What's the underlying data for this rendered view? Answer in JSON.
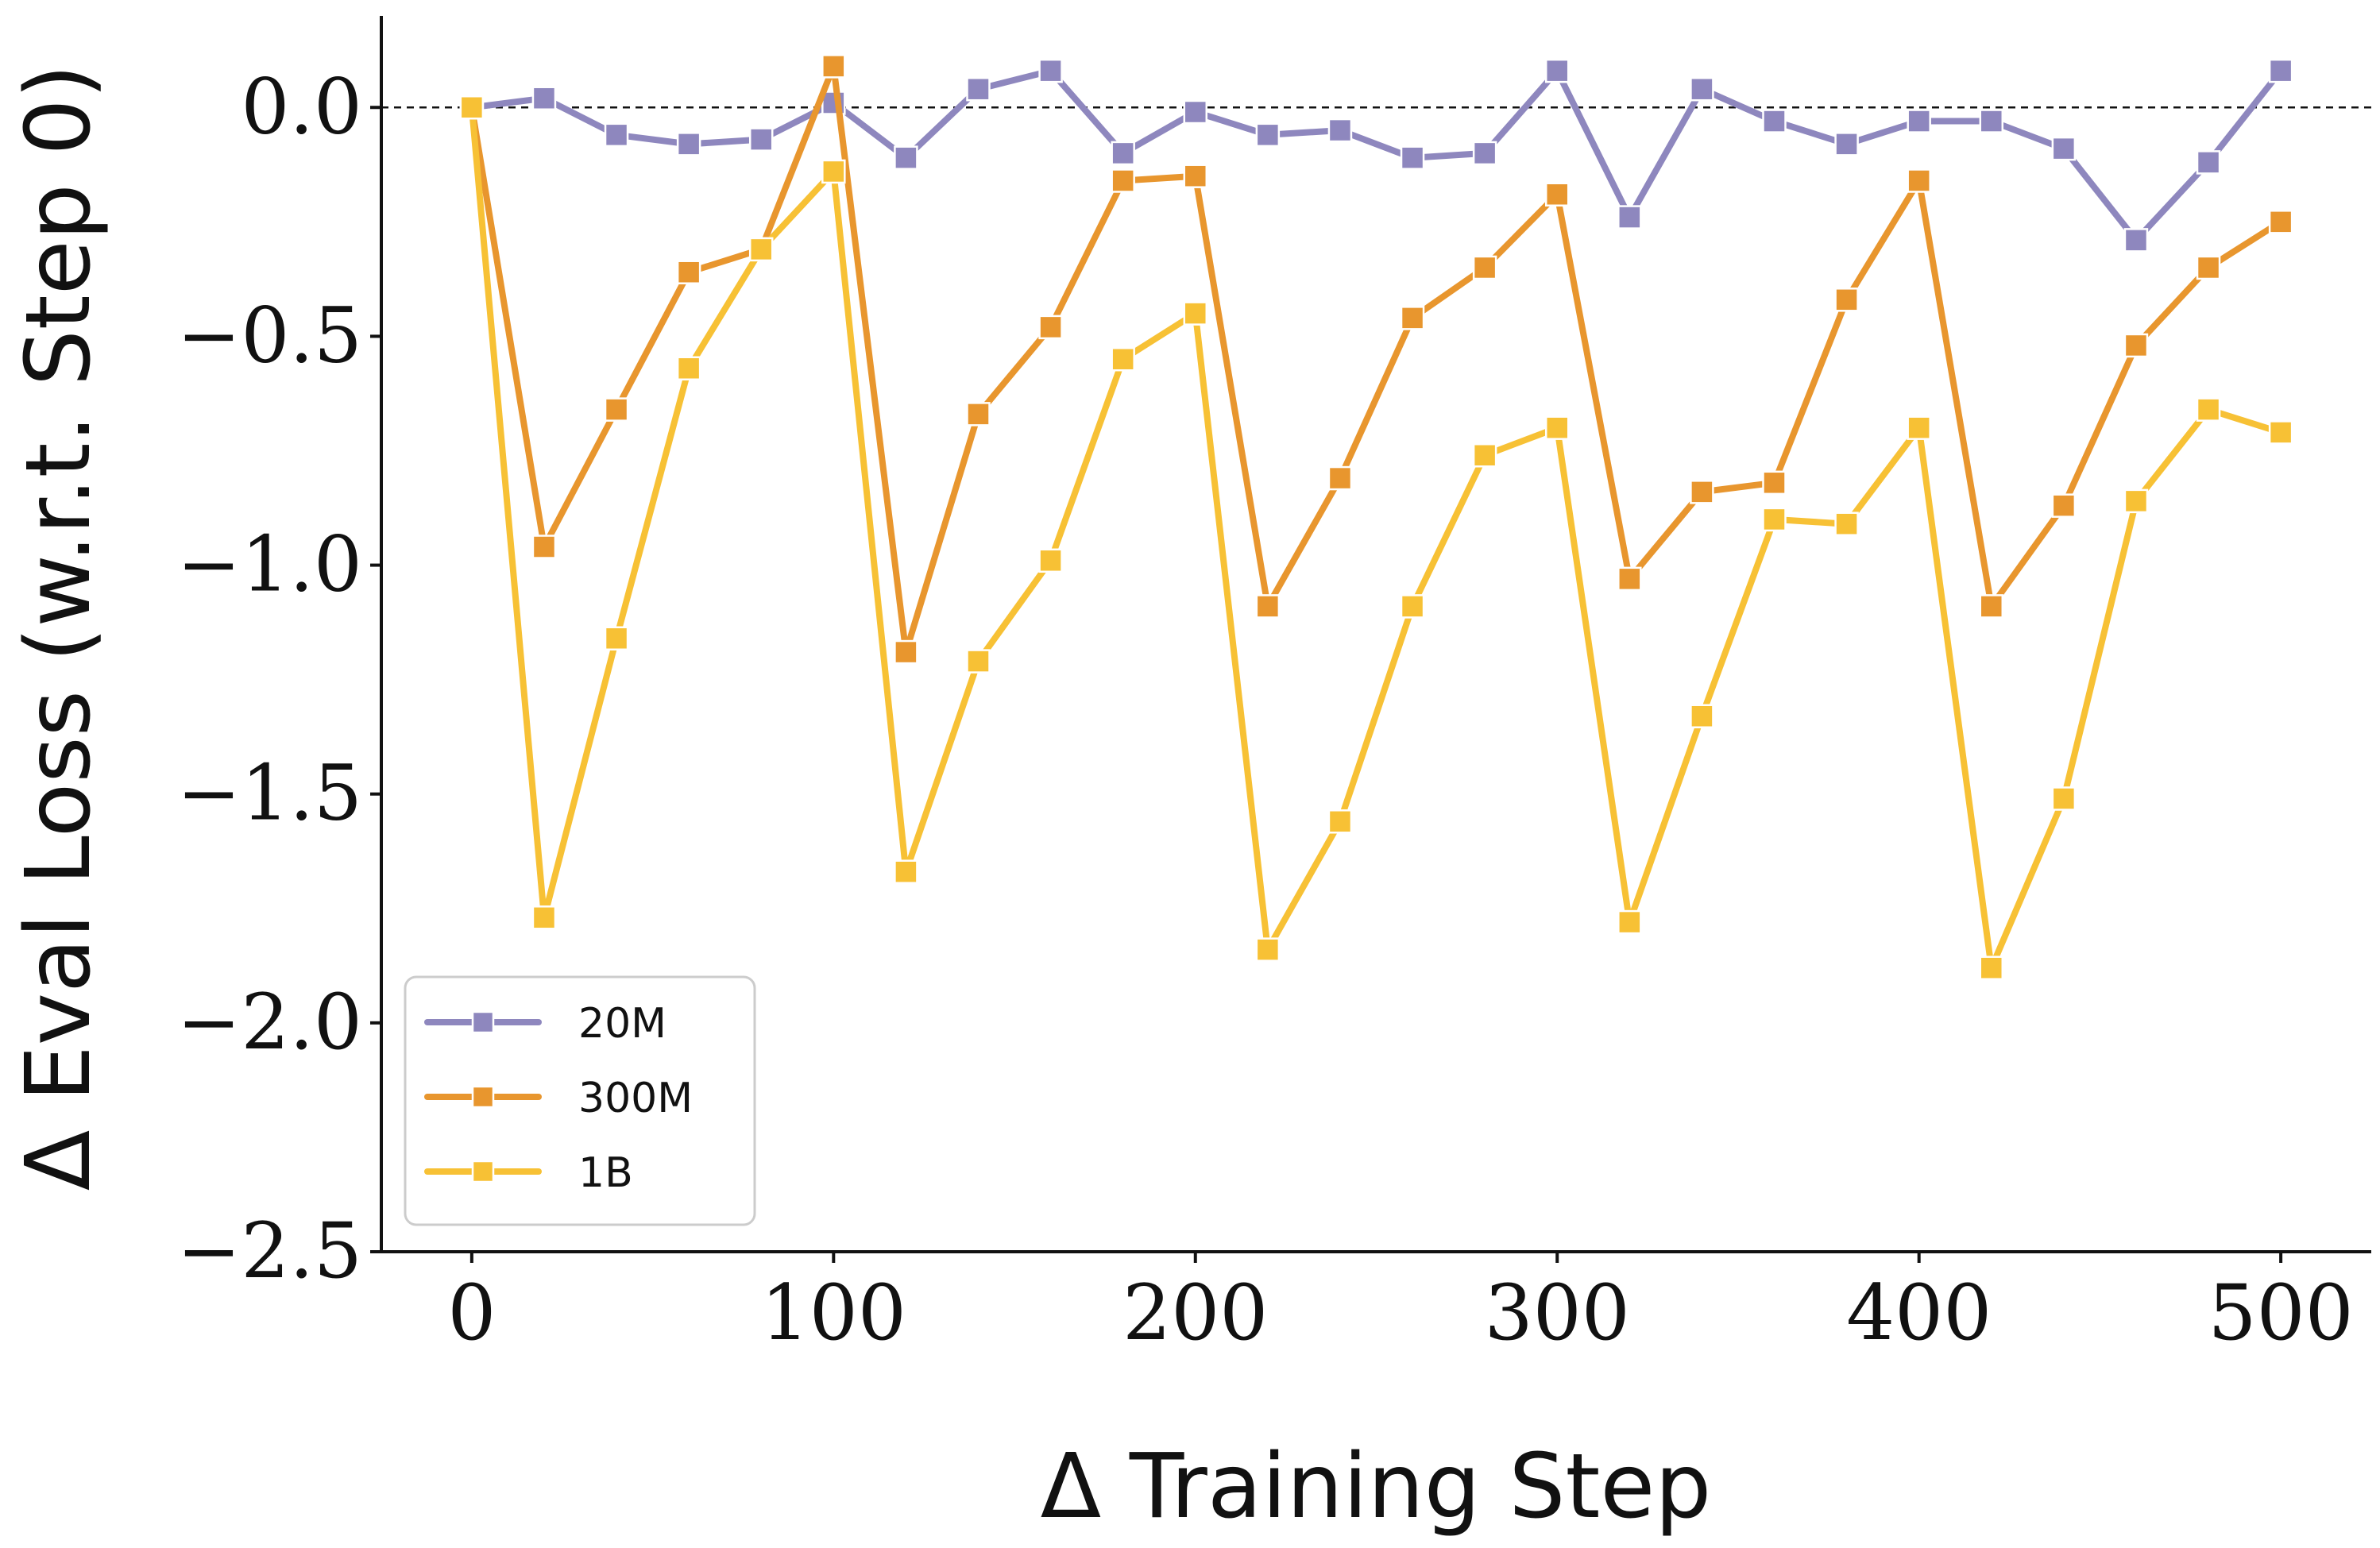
{
  "chart_data": {
    "type": "line",
    "xlabel": "Δ Training Step",
    "ylabel": "Δ Eval Loss (w.r.t. Step 0)",
    "xlim": [
      -25,
      525
    ],
    "ylim": [
      -2.5,
      0.2
    ],
    "xticks": [
      0,
      100,
      200,
      300,
      400,
      500
    ],
    "yticks": [
      0.0,
      -0.5,
      -1.0,
      -1.5,
      -2.0,
      -2.5
    ],
    "xtick_labels": [
      "0",
      "100",
      "200",
      "300",
      "400",
      "500"
    ],
    "ytick_labels": [
      "0.0",
      "−0.5",
      "−1.0",
      "−1.5",
      "−2.0",
      "−2.5"
    ],
    "reference_line_y": 0.0,
    "grid": false,
    "legend_position": "lower-left",
    "x": [
      0,
      20,
      40,
      60,
      80,
      100,
      120,
      140,
      160,
      180,
      200,
      220,
      240,
      260,
      280,
      300,
      320,
      340,
      360,
      380,
      400,
      420,
      440,
      460,
      480,
      500
    ],
    "series": [
      {
        "name": "20M",
        "color": "#8E87BE",
        "values": [
          0.0,
          0.02,
          -0.06,
          -0.08,
          -0.07,
          0.01,
          -0.11,
          0.04,
          0.08,
          -0.1,
          -0.01,
          -0.06,
          -0.05,
          -0.11,
          -0.1,
          0.08,
          -0.24,
          0.04,
          -0.03,
          -0.08,
          -0.03,
          -0.03,
          -0.09,
          -0.29,
          -0.12,
          0.08
        ]
      },
      {
        "name": "300M",
        "color": "#E8962E",
        "values": [
          0.0,
          -0.96,
          -0.66,
          -0.36,
          -0.31,
          0.09,
          -1.19,
          -0.67,
          -0.48,
          -0.16,
          -0.15,
          -1.09,
          -0.81,
          -0.46,
          -0.35,
          -0.19,
          -1.03,
          -0.84,
          -0.82,
          -0.42,
          -0.16,
          -1.09,
          -0.87,
          -0.52,
          -0.35,
          -0.25
        ]
      },
      {
        "name": "1B",
        "color": "#F7C135",
        "values": [
          0.0,
          -1.77,
          -1.16,
          -0.57,
          -0.31,
          -0.14,
          -1.67,
          -1.21,
          -0.99,
          -0.55,
          -0.45,
          -1.84,
          -1.56,
          -1.09,
          -0.76,
          -0.7,
          -1.78,
          -1.33,
          -0.9,
          -0.91,
          -0.7,
          -1.88,
          -1.51,
          -0.86,
          -0.66,
          -0.71
        ]
      }
    ]
  }
}
